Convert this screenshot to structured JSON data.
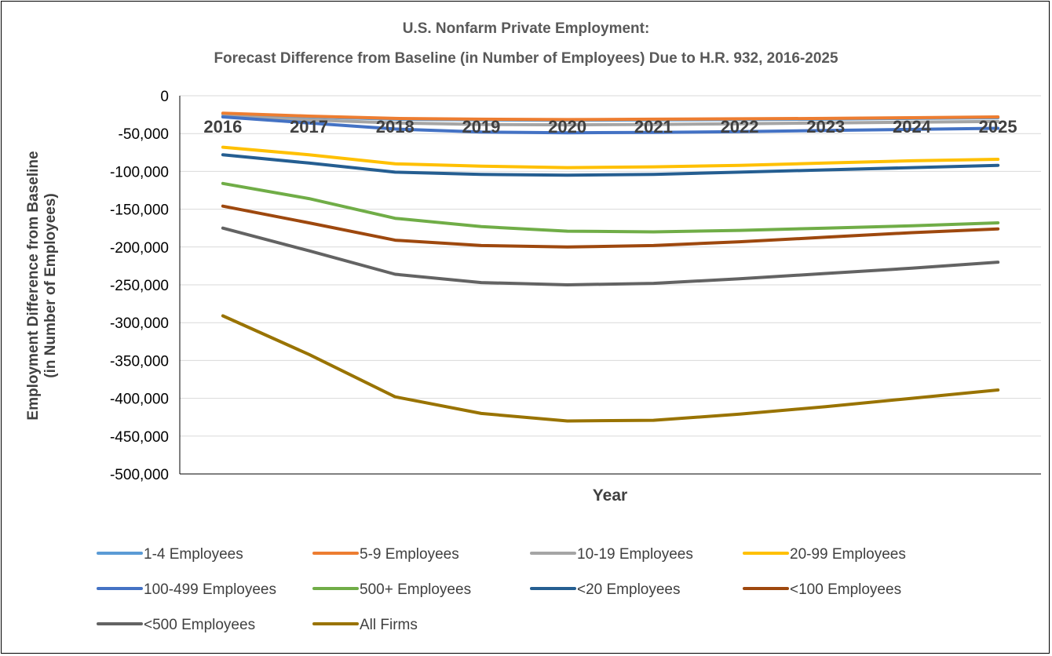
{
  "chart_data": {
    "type": "line",
    "title": [
      "U.S. Nonfarm Private Employment:",
      "Forecast Difference from Baseline (in Number of Employees) Due to H.R. 932, 2016-2025"
    ],
    "xlabel": "Year",
    "ylabel": [
      "Employment Difference from Baseline",
      "(in Number of Employees)"
    ],
    "categories": [
      "2016",
      "2017",
      "2018",
      "2019",
      "2020",
      "2021",
      "2022",
      "2023",
      "2024",
      "2025"
    ],
    "ylim": [
      -500000,
      0
    ],
    "ytick_step": 50000,
    "yticks": [
      "0",
      "-50,000",
      "-100,000",
      "-150,000",
      "-200,000",
      "-250,000",
      "-300,000",
      "-350,000",
      "-400,000",
      "-450,000",
      "-500,000"
    ],
    "grid": true,
    "legend_position": "bottom",
    "series": [
      {
        "name": "1-4 Employees",
        "color": "#5B9BD5",
        "values": [
          -24000,
          -28000,
          -31000,
          -32000,
          -32500,
          -32000,
          -31500,
          -31000,
          -30000,
          -29000
        ]
      },
      {
        "name": "5-9 Employees",
        "color": "#ED7D31",
        "values": [
          -23000,
          -27000,
          -30000,
          -31000,
          -31500,
          -31000,
          -30500,
          -30000,
          -29000,
          -28000
        ]
      },
      {
        "name": "10-19 Employees",
        "color": "#A5A5A5",
        "values": [
          -27000,
          -32000,
          -36000,
          -38000,
          -38500,
          -38000,
          -37000,
          -36000,
          -35000,
          -34000
        ]
      },
      {
        "name": "20-99 Employees",
        "color": "#FFC000",
        "values": [
          -68000,
          -78000,
          -90000,
          -93000,
          -95000,
          -94000,
          -92000,
          -89000,
          -86000,
          -84000
        ]
      },
      {
        "name": "100-499 Employees",
        "color": "#4472C4",
        "values": [
          -28000,
          -36000,
          -44000,
          -48000,
          -49000,
          -48500,
          -47500,
          -46000,
          -44500,
          -43000
        ]
      },
      {
        "name": "500+ Employees",
        "color": "#70AD47",
        "values": [
          -116000,
          -136000,
          -162000,
          -173000,
          -179000,
          -180000,
          -178000,
          -175000,
          -172000,
          -168000
        ]
      },
      {
        "name": "<20 Employees",
        "color": "#255E91",
        "values": [
          -78000,
          -89000,
          -101000,
          -104000,
          -105000,
          -104000,
          -101000,
          -98000,
          -95000,
          -92000
        ]
      },
      {
        "name": "<100 Employees",
        "color": "#9E480E",
        "values": [
          -146000,
          -168000,
          -191000,
          -198000,
          -200000,
          -198000,
          -193000,
          -187000,
          -181000,
          -176000
        ]
      },
      {
        "name": "<500 Employees",
        "color": "#636363",
        "values": [
          -175000,
          -205000,
          -236000,
          -247000,
          -250000,
          -248000,
          -242000,
          -235000,
          -228000,
          -220000
        ]
      },
      {
        "name": "All Firms",
        "color": "#997300",
        "values": [
          -291000,
          -342000,
          -398000,
          -420000,
          -430000,
          -429000,
          -421000,
          -411000,
          -400000,
          -389000
        ]
      }
    ]
  }
}
